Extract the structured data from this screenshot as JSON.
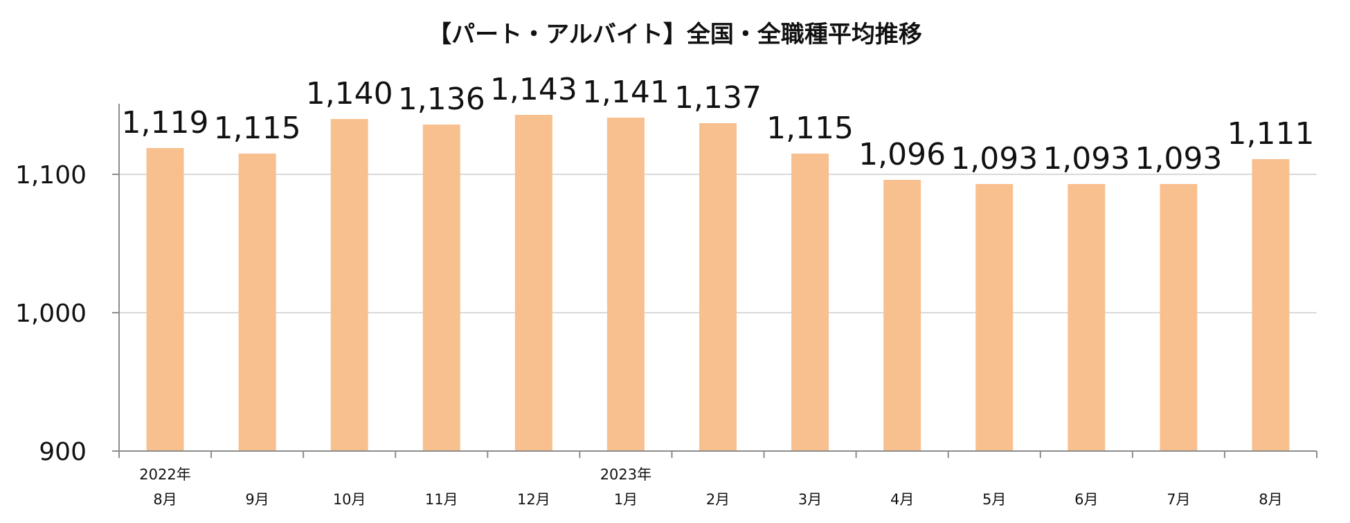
{
  "chart_data": {
    "type": "bar",
    "title": "【パート・アルバイト】全国・全職種平均推移",
    "xlabel": "",
    "ylabel": "",
    "categories": [
      "8月",
      "9月",
      "10月",
      "11月",
      "12月",
      "1月",
      "2月",
      "3月",
      "4月",
      "5月",
      "6月",
      "7月",
      "8月"
    ],
    "year_labels": [
      "2022年",
      "",
      "",
      "",
      "",
      "2023年",
      "",
      "",
      "",
      "",
      "",
      "",
      ""
    ],
    "values": [
      1119,
      1115,
      1140,
      1136,
      1143,
      1141,
      1137,
      1115,
      1096,
      1093,
      1093,
      1093,
      1111
    ],
    "value_labels": [
      "1,119",
      "1,115",
      "1,140",
      "1,136",
      "1,143",
      "1,141",
      "1,137",
      "1,115",
      "1,096",
      "1,093",
      "1,093",
      "1,093",
      "1,111"
    ],
    "ylim": [
      900,
      1145
    ],
    "y_ticks": [
      900,
      1000,
      1100
    ],
    "y_tick_labels": [
      "900",
      "1,000",
      "1,100"
    ],
    "grid": true,
    "legend": "none",
    "colors": {
      "bar": "#F9C08F",
      "grid": "#D9D9D9",
      "axis": "#8C8C8C",
      "text": "#111111"
    }
  }
}
